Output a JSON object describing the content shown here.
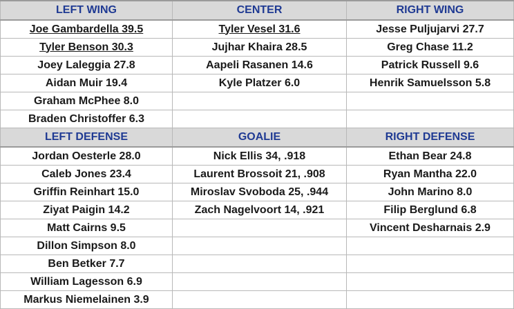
{
  "sections": [
    {
      "headers": [
        "LEFT WING",
        "CENTER",
        "RIGHT WING"
      ],
      "rows": [
        [
          "Joe Gambardella 39.5",
          "Tyler Vesel 31.6",
          "Jesse Puljujarvi 27.7"
        ],
        [
          "Tyler Benson 30.3",
          "Jujhar Khaira 28.5",
          "Greg Chase 11.2"
        ],
        [
          "Joey Laleggia 27.8",
          "Aapeli Rasanen 14.6",
          "Patrick Russell 9.6"
        ],
        [
          "Aidan Muir 19.4",
          "Kyle Platzer 6.0",
          "Henrik Samuelsson 5.8"
        ],
        [
          "Graham McPhee 8.0",
          "",
          ""
        ],
        [
          "Braden Christoffer 6.3",
          "",
          ""
        ]
      ],
      "underlined": [
        "0-0",
        "0-1",
        "1-0"
      ]
    },
    {
      "headers": [
        "LEFT DEFENSE",
        "GOALIE",
        "RIGHT DEFENSE"
      ],
      "rows": [
        [
          "Jordan Oesterle 28.0",
          "Nick Ellis 34, .918",
          "Ethan Bear 24.8"
        ],
        [
          "Caleb Jones 23.4",
          "Laurent Brossoit 21, .908",
          "Ryan Mantha 22.0"
        ],
        [
          "Griffin Reinhart 15.0",
          "Miroslav Svoboda 25, .944",
          "John Marino 8.0"
        ],
        [
          "Ziyat Paigin 14.2",
          "Zach Nagelvoort 14, .921",
          "Filip Berglund 6.8"
        ],
        [
          "Matt Cairns 9.5",
          "",
          "Vincent Desharnais 2.9"
        ],
        [
          "Dillon Simpson 8.0",
          "",
          ""
        ],
        [
          "Ben Betker 7.7",
          "",
          ""
        ],
        [
          "William Lagesson 6.9",
          "",
          ""
        ],
        [
          "Markus Niemelainen 3.9",
          "",
          ""
        ]
      ],
      "underlined": []
    }
  ]
}
